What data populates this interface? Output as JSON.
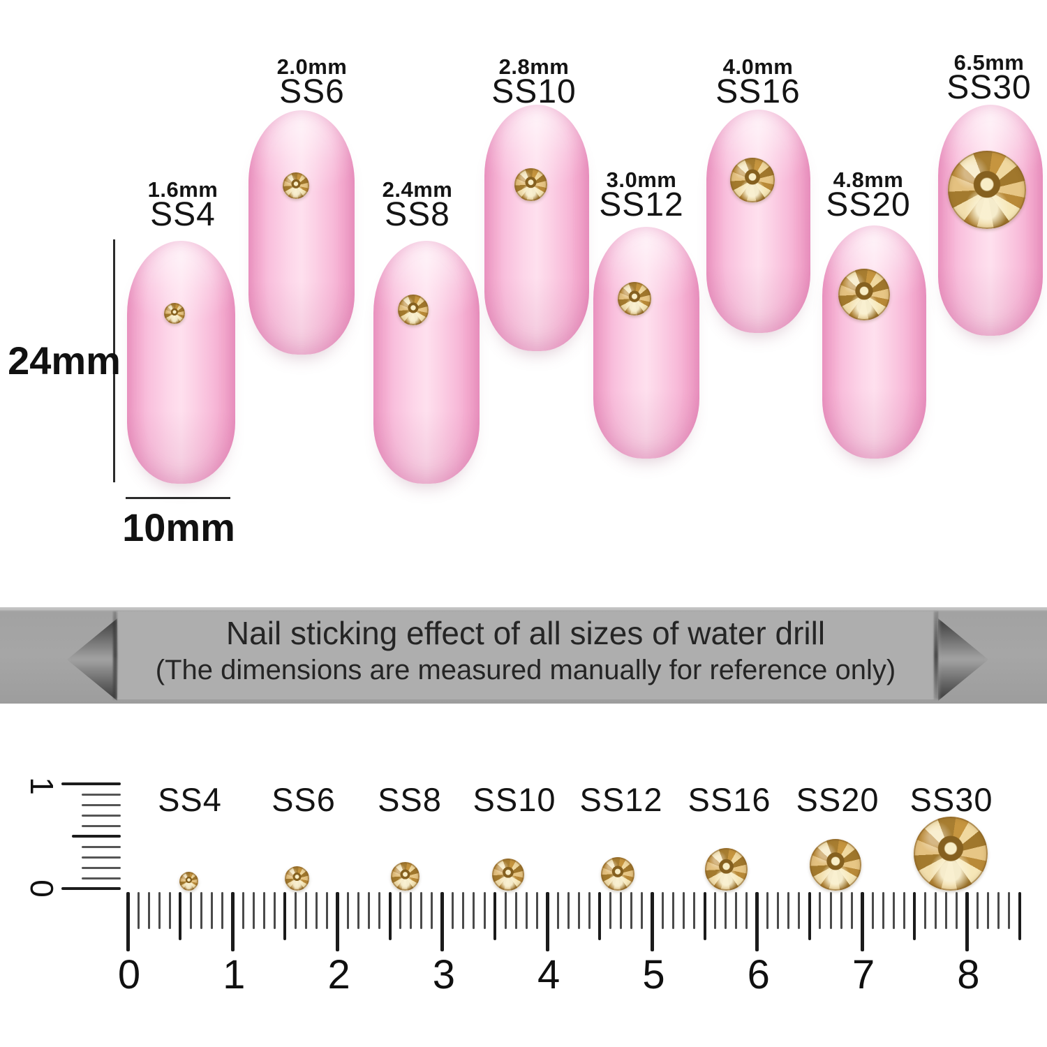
{
  "product": {
    "description": "Rhinestone size comparison on nails",
    "stone_color_hex": "#d2a65a",
    "nail_color_hex": "#f8bcda",
    "banner_gray_hex": "#aeaeae"
  },
  "top_section": {
    "vertical_measure": {
      "label": "24mm"
    },
    "horizontal_measure": {
      "label": "10mm"
    }
  },
  "sizes": [
    {
      "ss": "SS4",
      "mm": "1.6mm"
    },
    {
      "ss": "SS6",
      "mm": "2.0mm"
    },
    {
      "ss": "SS8",
      "mm": "2.4mm"
    },
    {
      "ss": "SS10",
      "mm": "2.8mm"
    },
    {
      "ss": "SS12",
      "mm": "3.0mm"
    },
    {
      "ss": "SS16",
      "mm": "4.0mm"
    },
    {
      "ss": "SS20",
      "mm": "4.8mm"
    },
    {
      "ss": "SS30",
      "mm": "6.5mm"
    }
  ],
  "banner": {
    "line1": "Nail sticking effect of all sizes of water drill",
    "line2": "(The dimensions are measured manually for reference only)"
  },
  "ruler": {
    "numbers": [
      "0",
      "1",
      "2",
      "3",
      "4",
      "5",
      "6",
      "7",
      "8"
    ]
  },
  "vertical_ruler": {
    "numbers": [
      "1",
      "0"
    ]
  }
}
